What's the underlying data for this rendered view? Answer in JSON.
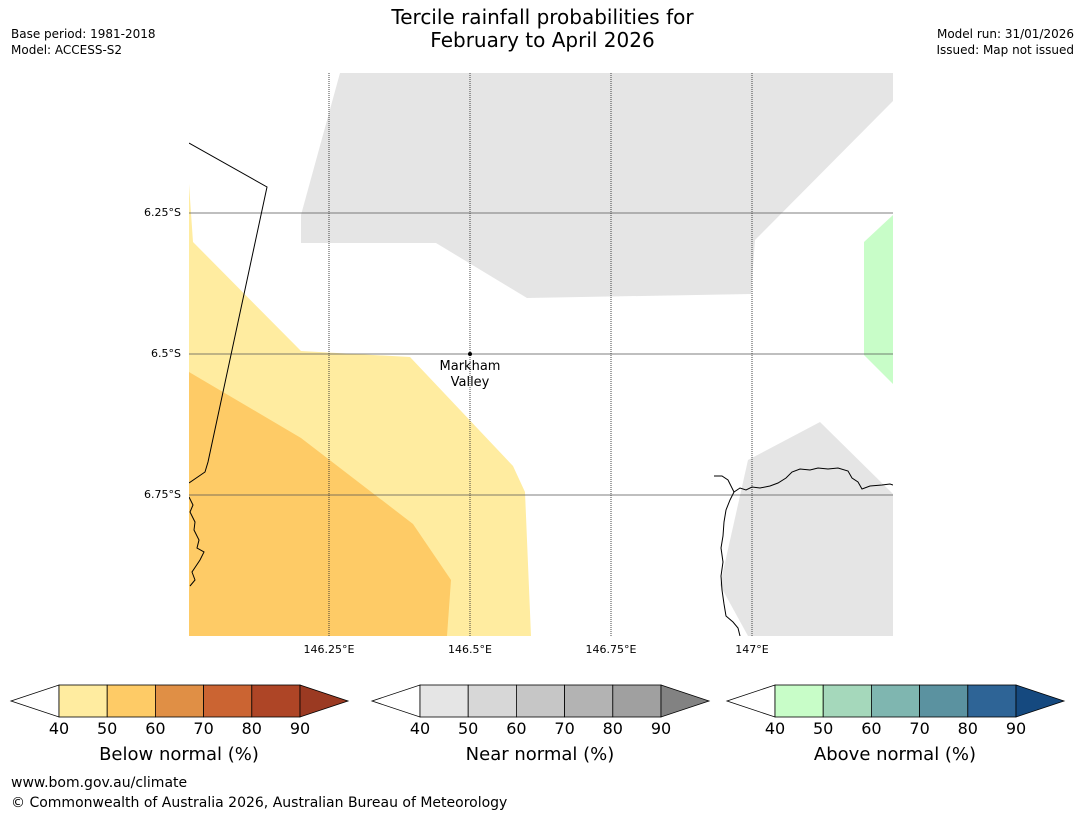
{
  "title": {
    "line1": "Tercile rainfall probabilities for",
    "line2": "February to April 2026"
  },
  "meta_left": {
    "base_period": "Base period: 1981-2018",
    "model": "Model: ACCESS-S2"
  },
  "meta_right": {
    "model_run": "Model run: 31/01/2026",
    "issued": "Issued: Map not issued"
  },
  "map": {
    "lat_labels": [
      "6.25°S",
      "6.5°S",
      "6.75°S"
    ],
    "lon_labels": [
      "146.25°E",
      "146.5°E",
      "146.75°E",
      "147°E"
    ],
    "place": {
      "line1": "Markham",
      "line2": "Valley"
    },
    "colors": {
      "below_40_50": "#ffeca0",
      "below_50_60": "#fecb66",
      "near_40_50": "#e5e5e5",
      "above_40_50": "#c8fdc8",
      "gridline": "#555555",
      "coastline": "#000000"
    }
  },
  "colorbars": {
    "below": {
      "title": "Below normal (%)",
      "ticks": [
        "40",
        "50",
        "60",
        "70",
        "80",
        "90"
      ],
      "colors": [
        "#ffeca0",
        "#fecb66",
        "#e08f45",
        "#cb6432",
        "#ae4526",
        "#9b3a22"
      ]
    },
    "near": {
      "title": "Near normal (%)",
      "ticks": [
        "40",
        "50",
        "60",
        "70",
        "80",
        "90"
      ],
      "colors": [
        "#e5e5e5",
        "#d7d7d7",
        "#c6c6c6",
        "#b3b3b3",
        "#a0a0a0",
        "#828282"
      ]
    },
    "above": {
      "title": "Above normal (%)",
      "ticks": [
        "40",
        "50",
        "60",
        "70",
        "80",
        "90"
      ],
      "colors": [
        "#c8fdc8",
        "#a5d8bb",
        "#7fb6b0",
        "#5b92a0",
        "#2e6496",
        "#15497f"
      ]
    }
  },
  "footer": {
    "url": "www.bom.gov.au/climate",
    "copyright": "© Commonwealth of Australia 2026, Australian Bureau of Meteorology"
  }
}
